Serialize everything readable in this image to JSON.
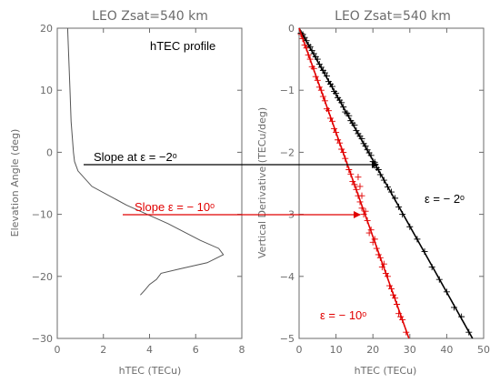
{
  "chart_data": [
    {
      "type": "line",
      "title": "LEO Zsat=540 km",
      "xlabel": "hTEC (TECu)",
      "ylabel": "Elevation Angle (deg)",
      "xlim": [
        0,
        8
      ],
      "ylim": [
        -30,
        20
      ],
      "xticks": [
        "0",
        "2",
        "4",
        "6",
        "8"
      ],
      "yticks": [
        "20",
        "10",
        "0",
        "−10",
        "−20",
        "−30"
      ],
      "series": [
        {
          "color": "#555555",
          "x": [
            0.45,
            0.5,
            0.55,
            0.6,
            0.65,
            0.7,
            0.75,
            0.9,
            1.5,
            3.0,
            4.8,
            6.2,
            7.0,
            7.2,
            6.5,
            5.3,
            4.5,
            4.3,
            4.0,
            3.8,
            3.6
          ],
          "y": [
            20,
            15,
            10,
            5,
            2.5,
            0,
            -1.5,
            -3,
            -5.5,
            -8.5,
            -11.5,
            -14.2,
            -15.5,
            -16.5,
            -17.8,
            -18.8,
            -19.5,
            -20.5,
            -21.3,
            -22.2,
            -23
          ]
        }
      ],
      "annotations": [
        {
          "text": "hTEC profile",
          "x": 5.6,
          "y": 17,
          "color": "#000000"
        },
        {
          "text": "Slope at ε = −2ᵒ",
          "x": 1.1,
          "y": -2,
          "color": "#000000"
        },
        {
          "text": "Slope ε = − 10ᵒ",
          "x": 2.8,
          "y": -10,
          "color": "#e10000"
        }
      ]
    },
    {
      "type": "scatter",
      "title": "LEO Zsat=540 km",
      "xlabel": "hTEC (TECu)",
      "ylabel": "Vertical Derivative (TECu/deg)",
      "xlim": [
        0,
        50
      ],
      "ylim": [
        -5,
        0
      ],
      "xticks": [
        "0",
        "10",
        "20",
        "30",
        "40",
        "50"
      ],
      "yticks": [
        "0",
        "−1",
        "−2",
        "−3",
        "−4",
        "−5"
      ],
      "series": [
        {
          "color": "#000000",
          "fit_slope": -0.1064,
          "x": [
            0.5,
            1,
            1.5,
            2,
            2.5,
            3,
            3.5,
            4,
            4.5,
            5,
            5.5,
            6,
            6.5,
            7,
            7.5,
            8,
            8.5,
            9,
            9.5,
            10,
            10.5,
            11,
            11.5,
            12,
            12.5,
            13,
            13.5,
            14,
            14.5,
            15,
            15.5,
            16,
            16.5,
            17,
            17.5,
            18,
            18.5,
            19,
            19.5,
            20,
            20.5,
            21,
            21.5,
            22,
            23,
            24,
            25,
            26,
            27,
            28,
            30,
            32,
            34,
            36,
            38,
            40,
            42,
            44,
            46
          ],
          "y": [
            -0.08,
            -0.1,
            -0.15,
            -0.2,
            -0.27,
            -0.3,
            -0.36,
            -0.41,
            -0.46,
            -0.5,
            -0.58,
            -0.63,
            -0.68,
            -0.72,
            -0.77,
            -0.86,
            -0.9,
            -0.94,
            -1.02,
            -1.05,
            -1.12,
            -1.16,
            -1.2,
            -1.27,
            -1.35,
            -1.37,
            -1.41,
            -1.49,
            -1.53,
            -1.56,
            -1.65,
            -1.7,
            -1.74,
            -1.78,
            -1.86,
            -1.9,
            -1.96,
            -2.01,
            -2.05,
            -2.15,
            -2.16,
            -2.25,
            -2.28,
            -2.36,
            -2.45,
            -2.56,
            -2.64,
            -2.74,
            -2.88,
            -3.0,
            -3.2,
            -3.4,
            -3.6,
            -3.85,
            -4.05,
            -4.25,
            -4.5,
            -4.65,
            -4.9
          ]
        },
        {
          "color": "#e10000",
          "fit_slope": -0.168,
          "x": [
            0.5,
            1,
            1.5,
            2,
            2.5,
            3,
            3.5,
            4,
            4.5,
            5,
            5.5,
            6,
            6.5,
            7,
            7.5,
            8,
            8.5,
            9,
            9.5,
            10,
            10.5,
            11,
            11.5,
            12,
            12.5,
            13,
            13.5,
            14,
            14.5,
            15,
            15.5,
            16,
            16,
            16.5,
            16.5,
            17,
            17,
            17.5,
            18,
            18.5,
            19,
            19.5,
            20,
            20.5,
            21,
            21.5,
            22,
            22.5,
            23,
            23.5,
            24,
            24.5,
            25,
            25.5,
            26,
            26.5,
            27,
            27.5,
            28,
            29
          ],
          "y": [
            -0.1,
            -0.17,
            -0.27,
            -0.32,
            -0.43,
            -0.5,
            -0.62,
            -0.65,
            -0.78,
            -0.84,
            -0.95,
            -1.0,
            -1.1,
            -1.17,
            -1.3,
            -1.33,
            -1.45,
            -1.5,
            -1.62,
            -1.68,
            -1.8,
            -1.85,
            -1.95,
            -2.0,
            -2.1,
            -2.2,
            -2.28,
            -2.35,
            -2.47,
            -2.52,
            -2.6,
            -2.4,
            -2.7,
            -2.55,
            -2.8,
            -2.7,
            -2.9,
            -3.0,
            -2.95,
            -3.1,
            -3.3,
            -3.25,
            -3.45,
            -3.4,
            -3.55,
            -3.65,
            -3.7,
            -3.85,
            -3.8,
            -3.95,
            -4.0,
            -4.15,
            -4.2,
            -4.3,
            -4.35,
            -4.45,
            -4.6,
            -4.65,
            -4.7,
            -4.9
          ]
        }
      ],
      "annotations": [
        {
          "text": "ε = − 2ᵒ",
          "x": 35,
          "y": -2.9,
          "color": "#000000"
        },
        {
          "text": "ε = − 10ᵒ",
          "x": 6.5,
          "y": -4.4,
          "color": "#e10000"
        }
      ]
    }
  ]
}
